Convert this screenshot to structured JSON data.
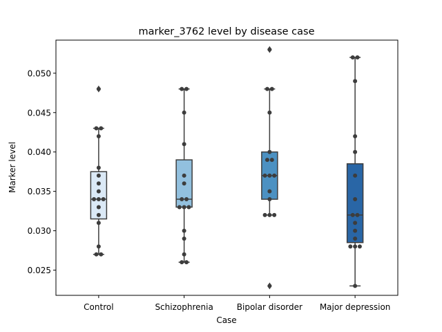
{
  "chart_data": {
    "type": "box",
    "title": "marker_3762 level by disease case",
    "xlabel": "Case",
    "ylabel": "Marker level",
    "ylim": [
      0.0218,
      0.0542
    ],
    "yticks": [
      0.025,
      0.03,
      0.035,
      0.04,
      0.045,
      0.05
    ],
    "ytick_labels": [
      "0.025",
      "0.030",
      "0.035",
      "0.040",
      "0.045",
      "0.050"
    ],
    "categories": [
      "Control",
      "Schizophrenia",
      "Bipolar disorder",
      "Major depression"
    ],
    "box_colors": [
      "#dbe9f6",
      "#92c0de",
      "#4c91c2",
      "#2966a6"
    ],
    "edge_color": "#3d3d3d",
    "point_color": "#3d3d3d",
    "grid": false,
    "legend": "none",
    "boxes": [
      {
        "q1": 0.0315,
        "median": 0.034,
        "q3": 0.0375,
        "whisker_low": 0.027,
        "whisker_high": 0.043,
        "outliers": [
          0.048
        ]
      },
      {
        "q1": 0.033,
        "median": 0.034,
        "q3": 0.039,
        "whisker_low": 0.026,
        "whisker_high": 0.048,
        "outliers": []
      },
      {
        "q1": 0.034,
        "median": 0.037,
        "q3": 0.04,
        "whisker_low": 0.032,
        "whisker_high": 0.048,
        "outliers": [
          0.053,
          0.023
        ]
      },
      {
        "q1": 0.0285,
        "median": 0.032,
        "q3": 0.0385,
        "whisker_low": 0.023,
        "whisker_high": 0.052,
        "outliers": []
      }
    ],
    "points": [
      [
        0.048,
        0.043,
        0.043,
        0.042,
        0.038,
        0.037,
        0.036,
        0.035,
        0.034,
        0.034,
        0.034,
        0.033,
        0.032,
        0.031,
        0.028,
        0.027,
        0.027
      ],
      [
        0.048,
        0.048,
        0.045,
        0.041,
        0.037,
        0.036,
        0.034,
        0.034,
        0.033,
        0.033,
        0.033,
        0.03,
        0.029,
        0.027,
        0.026,
        0.026
      ],
      [
        0.053,
        0.048,
        0.048,
        0.045,
        0.04,
        0.039,
        0.039,
        0.037,
        0.037,
        0.037,
        0.035,
        0.034,
        0.032,
        0.032,
        0.032,
        0.023
      ],
      [
        0.052,
        0.052,
        0.049,
        0.042,
        0.04,
        0.037,
        0.034,
        0.032,
        0.032,
        0.031,
        0.03,
        0.029,
        0.028,
        0.028,
        0.028,
        0.023
      ]
    ]
  }
}
